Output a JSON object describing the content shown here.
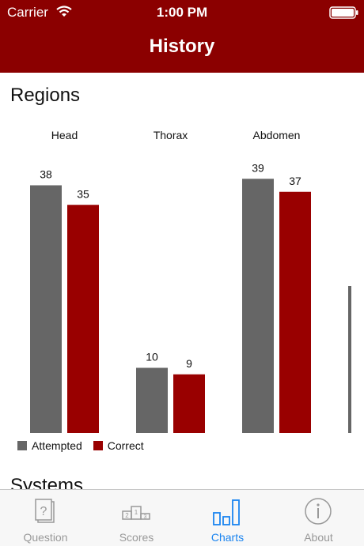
{
  "status_bar": {
    "carrier": "Carrier",
    "time": "1:00 PM"
  },
  "nav": {
    "title": "History"
  },
  "regions_section": {
    "title": "Regions"
  },
  "systems_section": {
    "title": "Systems"
  },
  "colors": {
    "brand": "#8b0000",
    "attempted": "#666666",
    "correct": "#990000",
    "active_tab": "#1a84f0"
  },
  "chart_data": {
    "type": "bar",
    "title": "",
    "categories": [
      "Head",
      "Thorax",
      "Abdomen"
    ],
    "series": [
      {
        "name": "Attempted",
        "values": [
          38,
          10,
          39
        ]
      },
      {
        "name": "Correct",
        "values": [
          35,
          9,
          37
        ]
      }
    ],
    "ylim": [
      0,
      40
    ],
    "legend_position": "bottom-left",
    "grid": false
  },
  "tab_bar": {
    "items": [
      {
        "label": "Question",
        "icon": "question-card-icon",
        "active": false
      },
      {
        "label": "Scores",
        "icon": "podium-icon",
        "active": false
      },
      {
        "label": "Charts",
        "icon": "bar-chart-icon",
        "active": true
      },
      {
        "label": "About",
        "icon": "info-icon",
        "active": false
      }
    ]
  }
}
